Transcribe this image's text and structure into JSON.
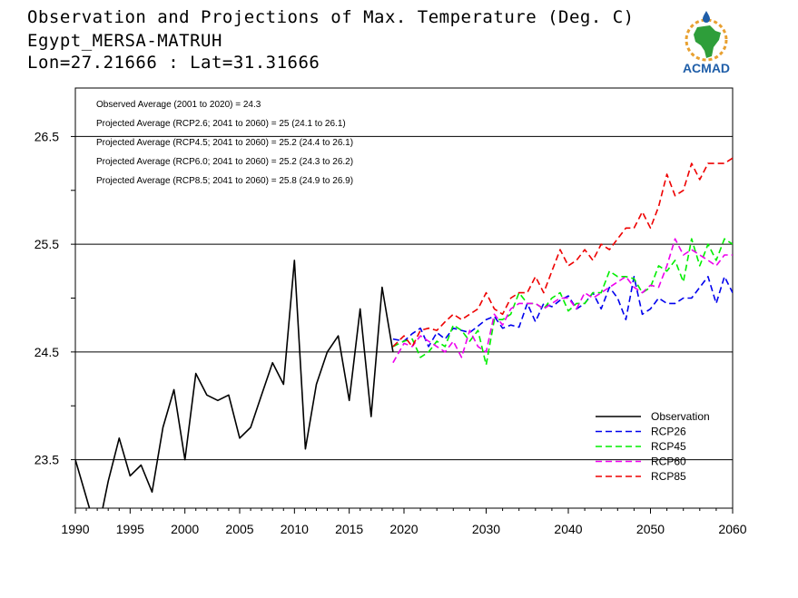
{
  "header": {
    "title": "Observation and Projections of Max. Temperature (Deg. C)",
    "station": "Egypt_MERSA-MATRUH",
    "coords": "Lon=27.21666 : Lat=31.31666"
  },
  "logo": {
    "text": "ACMAD",
    "icon": "africa-map-logo",
    "colors": {
      "blue": "#1f5ea8",
      "green": "#2e9e3a",
      "orange": "#e8a030"
    }
  },
  "chart_data": {
    "type": "line",
    "xlim": [
      1990,
      2060
    ],
    "ylim": [
      23.05,
      26.95
    ],
    "x_ticks": [
      {
        "value": 1990,
        "label": "1990"
      },
      {
        "value": 1995,
        "label": "1995"
      },
      {
        "value": 2000,
        "label": "2000"
      },
      {
        "value": 2005,
        "label": "2005"
      },
      {
        "value": 2010,
        "label": "2010"
      },
      {
        "value": 2015,
        "label": "2015"
      },
      {
        "value": 2020,
        "label": "2020"
      },
      {
        "value": 2030,
        "label": "2030"
      },
      {
        "value": 2040,
        "label": "2040"
      },
      {
        "value": 2050,
        "label": "2050"
      },
      {
        "value": 2060,
        "label": "2060"
      }
    ],
    "y_ticks": [
      {
        "value": 23.5,
        "label": "23.5"
      },
      {
        "value": 24.5,
        "label": "24.5"
      },
      {
        "value": 25.5,
        "label": "25.5"
      },
      {
        "value": 26.5,
        "label": "26.5"
      }
    ],
    "y_minor": [
      24.0,
      25.0,
      26.0
    ],
    "annotations": [
      "Observed Average (2001 to 2020) = 24.3",
      "Projected Average (RCP2.6; 2041 to 2060) = 25 (24.1 to 26.1)",
      "Projected Average (RCP4.5; 2041 to 2060) = 25.2 (24.4 to 26.1)",
      "Projected Average (RCP6.0; 2041 to 2060) = 25.2 (24.3 to 26.2)",
      "Projected Average (RCP8.5; 2041 to 2060) = 25.8 (24.9 to 26.9)"
    ],
    "legend_position": "bottom-right",
    "series": [
      {
        "name": "Observation",
        "color": "#000000",
        "dash": "solid",
        "x": [
          1990,
          1991,
          1992,
          1993,
          1994,
          1995,
          1996,
          1997,
          1998,
          1999,
          2000,
          2001,
          2002,
          2003,
          2004,
          2005,
          2006,
          2007,
          2008,
          2009,
          2010,
          2011,
          2012,
          2013,
          2014,
          2015,
          2016,
          2017,
          2018,
          2019
        ],
        "y": [
          23.5,
          23.15,
          22.8,
          23.3,
          23.7,
          23.35,
          23.45,
          23.2,
          23.8,
          24.15,
          23.5,
          24.3,
          24.1,
          24.05,
          24.1,
          23.7,
          23.8,
          24.1,
          24.4,
          24.2,
          25.35,
          23.6,
          24.2,
          24.5,
          24.65,
          24.05,
          24.9,
          23.9,
          25.1,
          24.5
        ]
      },
      {
        "name": "RCP26",
        "color": "#0000ee",
        "dash": "dashed",
        "x": [
          2019,
          2020,
          2021,
          2022,
          2023,
          2024,
          2025,
          2026,
          2027,
          2028,
          2029,
          2030,
          2031,
          2032,
          2033,
          2034,
          2035,
          2036,
          2037,
          2038,
          2039,
          2040,
          2041,
          2042,
          2043,
          2044,
          2045,
          2046,
          2047,
          2048,
          2049,
          2050,
          2051,
          2052,
          2053,
          2054,
          2055,
          2056,
          2057,
          2058,
          2059,
          2060
        ],
        "y": [
          24.62,
          24.6,
          24.67,
          24.72,
          24.55,
          24.68,
          24.62,
          24.72,
          24.7,
          24.68,
          24.74,
          24.8,
          24.83,
          24.72,
          24.75,
          24.73,
          24.95,
          24.78,
          24.95,
          24.92,
          24.98,
          25.02,
          24.9,
          24.95,
          25.05,
          24.9,
          25.1,
          25.0,
          24.8,
          25.2,
          24.85,
          24.9,
          25.0,
          24.95,
          24.95,
          25.0,
          25.0,
          25.1,
          25.2,
          24.95,
          25.2,
          25.05
        ]
      },
      {
        "name": "RCP45",
        "color": "#00ee00",
        "dash": "dashed",
        "x": [
          2019,
          2020,
          2021,
          2022,
          2023,
          2024,
          2025,
          2026,
          2027,
          2028,
          2029,
          2030,
          2031,
          2032,
          2033,
          2034,
          2035,
          2036,
          2037,
          2038,
          2039,
          2040,
          2041,
          2042,
          2043,
          2044,
          2045,
          2046,
          2047,
          2048,
          2049,
          2050,
          2051,
          2052,
          2053,
          2054,
          2055,
          2056,
          2057,
          2058,
          2059,
          2060
        ],
        "y": [
          24.55,
          24.6,
          24.62,
          24.45,
          24.5,
          24.6,
          24.55,
          24.75,
          24.7,
          24.6,
          24.7,
          24.38,
          24.8,
          24.8,
          24.85,
          25.05,
          24.95,
          24.95,
          24.9,
          25.0,
          25.05,
          24.88,
          24.95,
          24.95,
          25.05,
          25.05,
          25.25,
          25.2,
          25.2,
          25.18,
          25.05,
          25.1,
          25.3,
          25.25,
          25.35,
          25.15,
          25.55,
          25.3,
          25.5,
          25.35,
          25.55,
          25.5
        ]
      },
      {
        "name": "RCP60",
        "color": "#ee00ee",
        "dash": "dashed",
        "x": [
          2019,
          2020,
          2021,
          2022,
          2023,
          2024,
          2025,
          2026,
          2027,
          2028,
          2029,
          2030,
          2031,
          2032,
          2033,
          2034,
          2035,
          2036,
          2037,
          2038,
          2039,
          2040,
          2041,
          2042,
          2043,
          2044,
          2045,
          2046,
          2047,
          2048,
          2049,
          2050,
          2051,
          2052,
          2053,
          2054,
          2055,
          2056,
          2057,
          2058,
          2059,
          2060
        ],
        "y": [
          24.4,
          24.58,
          24.55,
          24.65,
          24.6,
          24.55,
          24.5,
          24.6,
          24.45,
          24.7,
          24.55,
          24.5,
          24.85,
          24.75,
          24.9,
          24.95,
          24.95,
          24.95,
          24.9,
          24.95,
          25.0,
          25.0,
          24.9,
          25.05,
          25.0,
          25.05,
          25.1,
          25.15,
          25.2,
          25.1,
          25.05,
          25.12,
          25.1,
          25.3,
          25.55,
          25.4,
          25.45,
          25.4,
          25.35,
          25.3,
          25.4,
          25.4
        ]
      },
      {
        "name": "RCP85",
        "color": "#ee0000",
        "dash": "dashed",
        "x": [
          2019,
          2020,
          2021,
          2022,
          2023,
          2024,
          2025,
          2026,
          2027,
          2028,
          2029,
          2030,
          2031,
          2032,
          2033,
          2034,
          2035,
          2036,
          2037,
          2038,
          2039,
          2040,
          2041,
          2042,
          2043,
          2044,
          2045,
          2046,
          2047,
          2048,
          2049,
          2050,
          2051,
          2052,
          2053,
          2054,
          2055,
          2056,
          2057,
          2058,
          2059,
          2060
        ],
        "y": [
          24.55,
          24.65,
          24.55,
          24.7,
          24.72,
          24.7,
          24.78,
          24.85,
          24.8,
          24.85,
          24.9,
          25.05,
          24.9,
          24.85,
          25.0,
          25.05,
          25.05,
          25.2,
          25.05,
          25.25,
          25.45,
          25.3,
          25.35,
          25.45,
          25.35,
          25.5,
          25.45,
          25.55,
          25.65,
          25.65,
          25.8,
          25.65,
          25.85,
          26.15,
          25.95,
          26.0,
          26.25,
          26.1,
          26.25,
          26.25,
          26.25,
          26.3
        ]
      }
    ]
  }
}
